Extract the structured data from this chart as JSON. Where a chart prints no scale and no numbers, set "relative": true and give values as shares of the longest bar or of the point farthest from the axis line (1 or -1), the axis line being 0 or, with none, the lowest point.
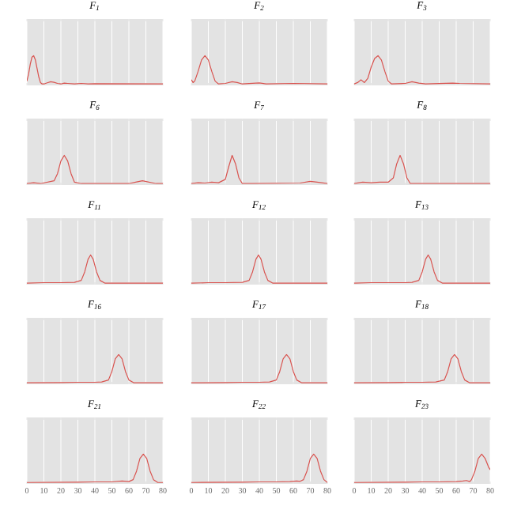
{
  "chart_data": [
    {
      "type": "line",
      "title": "F$_{1}$",
      "relative": true,
      "grid": "x",
      "tick_labels": false,
      "xlim": [
        0,
        80
      ],
      "xticks": [
        0,
        10,
        20,
        30,
        40,
        50,
        60,
        70,
        80
      ],
      "color": "#d9534f",
      "x": [
        0,
        1,
        2,
        3,
        4,
        5,
        6,
        7,
        8,
        9,
        10,
        12,
        14,
        16,
        18,
        20,
        22,
        24,
        28,
        32,
        36,
        40,
        80
      ],
      "values": [
        0.1,
        0.35,
        0.7,
        0.95,
        1,
        0.85,
        0.55,
        0.25,
        0.05,
        0,
        0,
        0.04,
        0.08,
        0.06,
        0.02,
        0,
        0.03,
        0.02,
        0,
        0.02,
        0,
        0.01,
        0
      ]
    },
    {
      "type": "line",
      "title": "F$_{2}$",
      "relative": true,
      "grid": "x",
      "tick_labels": false,
      "xlim": [
        0,
        80
      ],
      "xticks": [
        0,
        10,
        20,
        30,
        40,
        50,
        60,
        70,
        80
      ],
      "color": "#d9534f",
      "x": [
        0,
        1,
        2,
        4,
        6,
        8,
        10,
        12,
        14,
        16,
        20,
        24,
        27,
        30,
        40,
        44,
        60,
        80
      ],
      "values": [
        0.15,
        0.05,
        0.1,
        0.45,
        0.85,
        1,
        0.85,
        0.45,
        0.1,
        0,
        0.02,
        0.08,
        0.05,
        0,
        0.04,
        0,
        0.02,
        0
      ]
    },
    {
      "type": "line",
      "title": "F$_{3}$",
      "relative": true,
      "grid": "x",
      "tick_labels": false,
      "xlim": [
        0,
        80
      ],
      "xticks": [
        0,
        10,
        20,
        30,
        40,
        50,
        60,
        70,
        80
      ],
      "color": "#d9534f",
      "x": [
        0,
        2,
        4,
        6,
        8,
        10,
        12,
        14,
        16,
        18,
        20,
        22,
        30,
        34,
        38,
        42,
        58,
        62,
        80
      ],
      "values": [
        0,
        0.05,
        0.15,
        0.05,
        0.2,
        0.6,
        0.9,
        1,
        0.85,
        0.45,
        0.1,
        0,
        0.02,
        0.08,
        0.03,
        0,
        0.03,
        0.02,
        0
      ]
    },
    {
      "type": "line",
      "title": "F$_{6}$",
      "relative": true,
      "grid": "x",
      "tick_labels": false,
      "xlim": [
        0,
        80
      ],
      "xticks": [
        0,
        10,
        20,
        30,
        40,
        50,
        60,
        70,
        80
      ],
      "color": "#d9534f",
      "x": [
        0,
        4,
        8,
        12,
        16,
        18,
        20,
        22,
        24,
        26,
        28,
        32,
        60,
        64,
        68,
        72,
        76,
        80
      ],
      "values": [
        0,
        0.03,
        0,
        0.05,
        0.1,
        0.35,
        0.8,
        1,
        0.8,
        0.35,
        0.05,
        0,
        0,
        0.05,
        0.1,
        0.05,
        0,
        0
      ]
    },
    {
      "type": "line",
      "title": "F$_{7}$",
      "relative": true,
      "grid": "x",
      "tick_labels": false,
      "xlim": [
        0,
        80
      ],
      "xticks": [
        0,
        10,
        20,
        30,
        40,
        50,
        60,
        70,
        80
      ],
      "color": "#d9534f",
      "x": [
        0,
        4,
        8,
        12,
        16,
        20,
        22,
        24,
        26,
        28,
        30,
        36,
        64,
        70,
        74,
        80
      ],
      "values": [
        0,
        0.03,
        0.02,
        0.05,
        0.03,
        0.15,
        0.6,
        1,
        0.7,
        0.2,
        0,
        0,
        0.02,
        0.08,
        0.05,
        0
      ]
    },
    {
      "type": "line",
      "title": "F$_{8}$",
      "relative": true,
      "grid": "x",
      "tick_labels": false,
      "xlim": [
        0,
        80
      ],
      "xticks": [
        0,
        10,
        20,
        30,
        40,
        50,
        60,
        70,
        80
      ],
      "color": "#d9534f",
      "x": [
        0,
        5,
        10,
        15,
        20,
        23,
        25,
        27,
        29,
        31,
        33,
        40,
        80
      ],
      "values": [
        0,
        0.05,
        0.03,
        0.05,
        0.05,
        0.2,
        0.7,
        1,
        0.7,
        0.2,
        0,
        0,
        0
      ]
    },
    {
      "type": "line",
      "title": "F$_{11}$",
      "relative": true,
      "grid": "x",
      "tick_labels": false,
      "xlim": [
        0,
        80
      ],
      "xticks": [
        0,
        10,
        20,
        30,
        40,
        50,
        60,
        70,
        80
      ],
      "color": "#d9534f",
      "x": [
        0,
        10,
        20,
        28,
        32,
        34,
        36,
        37.5,
        39,
        41,
        43,
        46,
        80
      ],
      "values": [
        0,
        0.02,
        0.02,
        0.03,
        0.1,
        0.4,
        0.85,
        1,
        0.85,
        0.4,
        0.1,
        0,
        0
      ]
    },
    {
      "type": "line",
      "title": "F$_{12}$",
      "relative": true,
      "grid": "x",
      "tick_labels": false,
      "xlim": [
        0,
        80
      ],
      "xticks": [
        0,
        10,
        20,
        30,
        40,
        50,
        60,
        70,
        80
      ],
      "color": "#d9534f",
      "x": [
        0,
        10,
        20,
        30,
        34,
        36,
        38,
        39.5,
        41,
        43,
        45,
        48,
        80
      ],
      "values": [
        0,
        0.02,
        0.02,
        0.03,
        0.1,
        0.4,
        0.85,
        1,
        0.85,
        0.4,
        0.1,
        0,
        0
      ]
    },
    {
      "type": "line",
      "title": "F$_{13}$",
      "relative": true,
      "grid": "x",
      "tick_labels": false,
      "xlim": [
        0,
        80
      ],
      "xticks": [
        0,
        10,
        20,
        30,
        40,
        50,
        60,
        70,
        80
      ],
      "color": "#d9534f",
      "x": [
        0,
        10,
        20,
        30,
        34,
        38,
        40,
        42,
        43.5,
        45,
        47,
        49,
        52,
        80
      ],
      "values": [
        0,
        0.02,
        0.02,
        0.02,
        0.03,
        0.1,
        0.4,
        0.85,
        1,
        0.85,
        0.4,
        0.1,
        0,
        0
      ]
    },
    {
      "type": "line",
      "title": "F$_{16}$",
      "relative": true,
      "grid": "x",
      "tick_labels": false,
      "xlim": [
        0,
        80
      ],
      "xticks": [
        0,
        10,
        20,
        30,
        40,
        50,
        60,
        70,
        80
      ],
      "color": "#d9534f",
      "x": [
        0,
        20,
        30,
        40,
        44,
        48,
        50,
        52,
        54,
        56,
        58,
        60,
        63,
        80
      ],
      "values": [
        0,
        0.01,
        0.02,
        0.02,
        0.03,
        0.1,
        0.4,
        0.85,
        1,
        0.85,
        0.4,
        0.1,
        0,
        0
      ]
    },
    {
      "type": "line",
      "title": "F$_{17}$",
      "relative": true,
      "grid": "x",
      "tick_labels": false,
      "xlim": [
        0,
        80
      ],
      "xticks": [
        0,
        10,
        20,
        30,
        40,
        50,
        60,
        70,
        80
      ],
      "color": "#d9534f",
      "x": [
        0,
        20,
        30,
        40,
        46,
        50,
        52,
        54,
        56,
        58,
        60,
        62,
        65,
        80
      ],
      "values": [
        0,
        0.01,
        0.02,
        0.02,
        0.03,
        0.1,
        0.4,
        0.85,
        1,
        0.85,
        0.4,
        0.1,
        0,
        0
      ]
    },
    {
      "type": "line",
      "title": "F$_{18}$",
      "relative": true,
      "grid": "x",
      "tick_labels": false,
      "xlim": [
        0,
        80
      ],
      "xticks": [
        0,
        10,
        20,
        30,
        40,
        50,
        60,
        70,
        80
      ],
      "color": "#d9534f",
      "x": [
        0,
        20,
        30,
        40,
        48,
        53,
        55,
        57,
        59,
        61,
        63,
        65,
        68,
        80
      ],
      "values": [
        0,
        0.01,
        0.02,
        0.02,
        0.03,
        0.1,
        0.4,
        0.85,
        1,
        0.85,
        0.4,
        0.1,
        0,
        0
      ]
    },
    {
      "type": "line",
      "title": "F$_{21}$",
      "relative": true,
      "grid": "x",
      "tick_labels": "x",
      "xlim": [
        0,
        80
      ],
      "xticks": [
        0,
        10,
        20,
        30,
        40,
        50,
        60,
        70,
        80
      ],
      "color": "#d9534f",
      "x": [
        0,
        30,
        40,
        50,
        56,
        60,
        62.5,
        64.5,
        66.5,
        68.5,
        70.5,
        72.5,
        74.5,
        77,
        80
      ],
      "values": [
        0,
        0.01,
        0.02,
        0.02,
        0.05,
        0.03,
        0.1,
        0.4,
        0.85,
        1,
        0.85,
        0.4,
        0.1,
        0,
        0
      ]
    },
    {
      "type": "line",
      "title": "F$_{22}$",
      "relative": true,
      "grid": "x",
      "tick_labels": "x",
      "xlim": [
        0,
        80
      ],
      "xticks": [
        0,
        10,
        20,
        30,
        40,
        50,
        60,
        70,
        80
      ],
      "color": "#d9534f",
      "x": [
        0,
        30,
        40,
        50,
        58,
        62,
        64,
        66,
        68,
        70,
        72,
        74,
        76,
        78,
        80
      ],
      "values": [
        0,
        0.01,
        0.02,
        0.02,
        0.03,
        0.05,
        0.04,
        0.1,
        0.4,
        0.85,
        1,
        0.85,
        0.4,
        0.1,
        0
      ]
    },
    {
      "type": "line",
      "title": "F$_{23}$",
      "relative": true,
      "grid": "x",
      "tick_labels": "x",
      "xlim": [
        0,
        80
      ],
      "xticks": [
        0,
        10,
        20,
        30,
        40,
        50,
        60,
        70,
        80
      ],
      "color": "#d9534f",
      "x": [
        0,
        30,
        40,
        50,
        60,
        64,
        66,
        68,
        69,
        71,
        73,
        75,
        77,
        79,
        80
      ],
      "values": [
        0,
        0.01,
        0.02,
        0.02,
        0.03,
        0.05,
        0.07,
        0.03,
        0.1,
        0.4,
        0.85,
        1,
        0.85,
        0.55,
        0.45
      ]
    }
  ]
}
